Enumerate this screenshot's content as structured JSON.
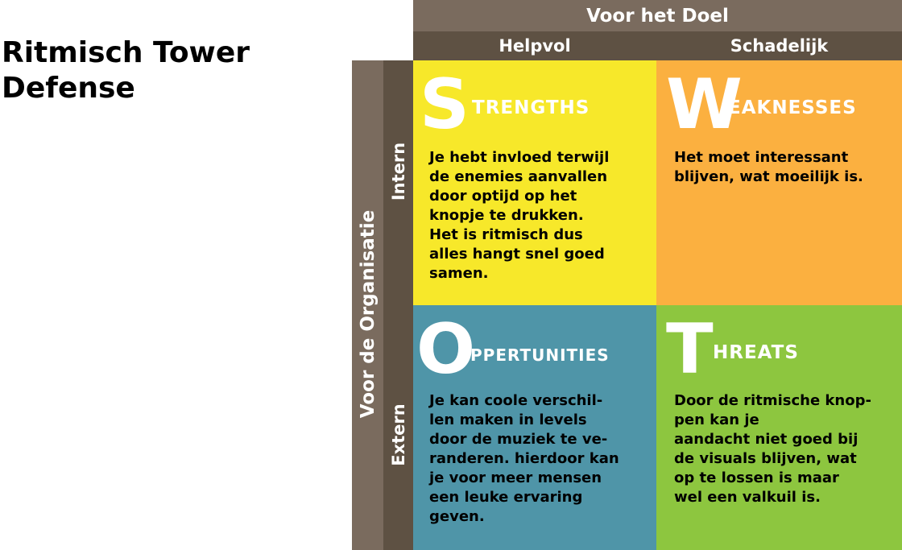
{
  "title": "Ritmisch Tower\nDefense",
  "headers": {
    "top": "Voor het Doel",
    "helpful": "Helpvol",
    "harmful": "Schadelijk",
    "left": "Voor de Organisatie",
    "internal": "Intern",
    "external": "Extern"
  },
  "quadrants": {
    "strengths": {
      "initial": "S",
      "rest": "TRENGTHS",
      "color": "#f7e82a",
      "text": "Je hebt invloed terwijl\nde enemies aanvallen\ndoor optijd op het\nknopje te drukken.\nHet is ritmisch dus\nalles hangt snel goed\nsamen."
    },
    "weaknesses": {
      "initial": "W",
      "rest": "EAKNESSES",
      "color": "#fbb040",
      "text": "Het moet interessant\nblijven, wat moeilijk is."
    },
    "opportunities": {
      "initial": "O",
      "rest": "PPERTUNITIES",
      "color": "#4f95a8",
      "text": "Je kan coole verschil-\nlen maken in levels\ndoor de muziek te ve-\nranderen. hierdoor kan\nje voor meer mensen\neen leuke ervaring\ngeven."
    },
    "threats": {
      "initial": "T",
      "rest": "HREATS",
      "color": "#8dc63f",
      "text": "Door de ritmische knop-\npen kan je\naandacht niet goed bij\nde visuals blijven, wat\nop te lossen is maar\nwel een valkuil is."
    }
  }
}
